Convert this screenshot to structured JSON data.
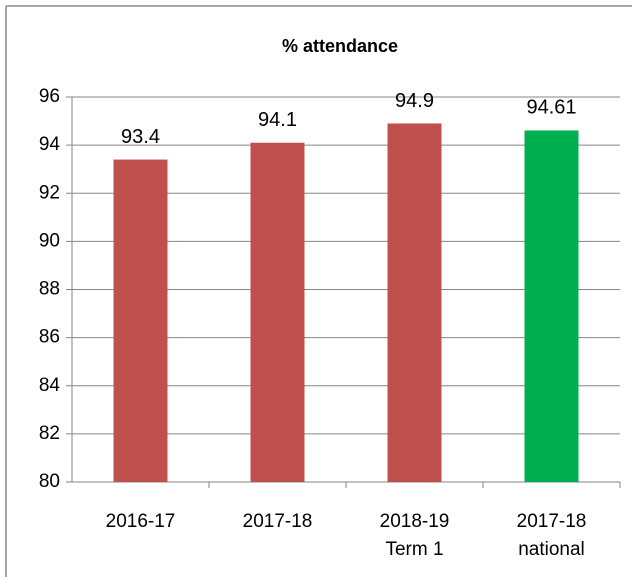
{
  "chart_data": {
    "type": "bar",
    "title": "% attendance",
    "categories": [
      "2016-17",
      "2017-18",
      "2018-19\nTerm 1",
      "2017-18\nnational"
    ],
    "values": [
      93.4,
      94.1,
      94.9,
      94.61
    ],
    "colors": [
      "#c0504d",
      "#c0504d",
      "#c0504d",
      "#00b050"
    ],
    "ylim": [
      80,
      96
    ],
    "yticks": [
      80,
      82,
      84,
      86,
      88,
      90,
      92,
      94,
      96
    ],
    "grid": true
  }
}
